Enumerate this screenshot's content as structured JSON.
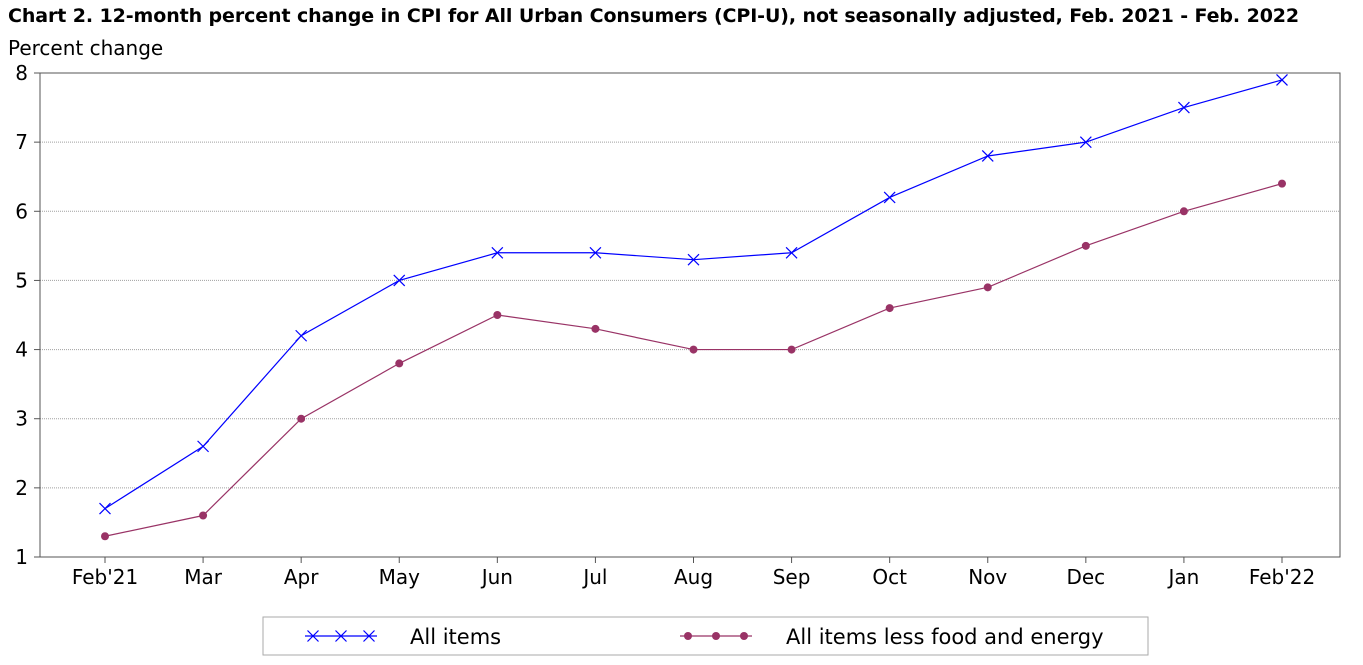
{
  "chart_data": {
    "type": "line",
    "title": "Chart 2. 12-month percent change in CPI for All Urban Consumers (CPI-U), not seasonally adjusted, Feb. 2021 - Feb. 2022",
    "ylabel": "Percent change",
    "xlabel": "",
    "categories": [
      "Feb'21",
      "Mar",
      "Apr",
      "May",
      "Jun",
      "Jul",
      "Aug",
      "Sep",
      "Oct",
      "Nov",
      "Dec",
      "Jan",
      "Feb'22"
    ],
    "ylim": [
      1,
      8
    ],
    "yticks": [
      "1",
      "2",
      "3",
      "4",
      "5",
      "6",
      "7",
      "8"
    ],
    "grid": true,
    "legend_position": "bottom",
    "series": [
      {
        "name": "All items",
        "marker": "x",
        "color": "#0000ff",
        "values": [
          1.7,
          2.6,
          4.2,
          5.0,
          5.4,
          5.4,
          5.3,
          5.4,
          6.2,
          6.8,
          7.0,
          7.5,
          7.9
        ]
      },
      {
        "name": "All items less food and energy",
        "marker": "dot",
        "color": "#993366",
        "values": [
          1.3,
          1.6,
          3.0,
          3.8,
          4.5,
          4.3,
          4.0,
          4.0,
          4.6,
          4.9,
          5.5,
          6.0,
          6.4
        ]
      }
    ]
  }
}
